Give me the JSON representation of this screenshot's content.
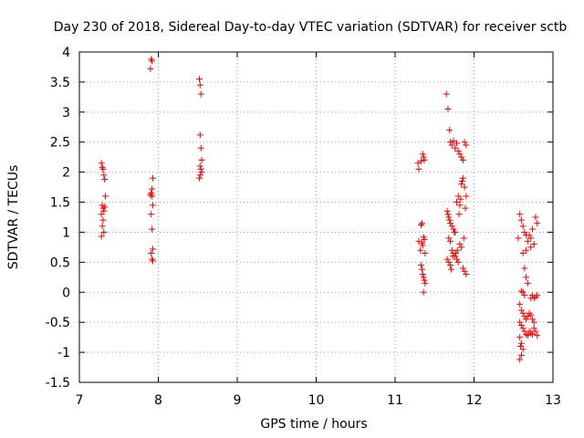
{
  "chart_data": {
    "type": "scatter",
    "title": "Day 230 of 2018, Sidereal Day-to-day VTEC variation (SDTVAR) for receiver sctb",
    "xlabel": "GPS time / hours",
    "ylabel": "SDTVAR / TECUs",
    "xlim": [
      7,
      13
    ],
    "ylim": [
      -1.5,
      4
    ],
    "xticks": [
      "7",
      "8",
      "9",
      "10",
      "11",
      "12",
      "13"
    ],
    "yticks": [
      "-1.5",
      "-1",
      "-0.5",
      "0",
      "0.5",
      "1",
      "1.5",
      "2",
      "2.5",
      "3",
      "3.5",
      "4"
    ],
    "grid": true,
    "marker": "plus",
    "color": "#ff0000",
    "series": [
      {
        "name": "SDTVAR",
        "points": [
          [
            7.28,
            2.15
          ],
          [
            7.29,
            2.08
          ],
          [
            7.3,
            2.05
          ],
          [
            7.31,
            1.95
          ],
          [
            7.32,
            1.88
          ],
          [
            7.33,
            1.6
          ],
          [
            7.29,
            1.45
          ],
          [
            7.3,
            1.4
          ],
          [
            7.31,
            1.35
          ],
          [
            7.28,
            1.3
          ],
          [
            7.3,
            1.2
          ],
          [
            7.29,
            1.1
          ],
          [
            7.31,
            1.0
          ],
          [
            7.28,
            0.93
          ],
          [
            7.32,
            1.42
          ],
          [
            7.91,
            3.88
          ],
          [
            7.92,
            3.85
          ],
          [
            7.9,
            3.72
          ],
          [
            7.93,
            1.9
          ],
          [
            7.92,
            1.72
          ],
          [
            7.91,
            1.65
          ],
          [
            7.9,
            1.62
          ],
          [
            7.92,
            1.6
          ],
          [
            7.93,
            1.45
          ],
          [
            7.91,
            1.3
          ],
          [
            7.92,
            1.05
          ],
          [
            7.93,
            0.72
          ],
          [
            7.91,
            0.65
          ],
          [
            7.92,
            0.55
          ],
          [
            7.93,
            0.52
          ],
          [
            8.52,
            3.55
          ],
          [
            8.53,
            3.45
          ],
          [
            8.54,
            3.3
          ],
          [
            8.53,
            2.62
          ],
          [
            8.54,
            2.4
          ],
          [
            8.55,
            2.2
          ],
          [
            8.53,
            2.1
          ],
          [
            8.54,
            2.05
          ],
          [
            8.55,
            2.0
          ],
          [
            8.53,
            1.95
          ],
          [
            8.52,
            1.9
          ],
          [
            11.29,
            2.15
          ],
          [
            11.3,
            2.05
          ],
          [
            11.33,
            2.18
          ],
          [
            11.35,
            2.3
          ],
          [
            11.36,
            2.25
          ],
          [
            11.37,
            2.2
          ],
          [
            11.34,
            1.15
          ],
          [
            11.33,
            1.12
          ],
          [
            11.36,
            0.92
          ],
          [
            11.37,
            0.88
          ],
          [
            11.34,
            0.82
          ],
          [
            11.35,
            0.78
          ],
          [
            11.38,
            0.65
          ],
          [
            11.33,
            0.45
          ],
          [
            11.34,
            0.38
          ],
          [
            11.35,
            0.3
          ],
          [
            11.36,
            0.25
          ],
          [
            11.37,
            0.2
          ],
          [
            11.38,
            0.15
          ],
          [
            11.36,
            0.0
          ],
          [
            11.3,
            0.85
          ],
          [
            11.32,
            0.7
          ],
          [
            11.65,
            3.3
          ],
          [
            11.67,
            3.05
          ],
          [
            11.69,
            2.7
          ],
          [
            11.7,
            2.5
          ],
          [
            11.72,
            2.45
          ],
          [
            11.74,
            2.52
          ],
          [
            11.76,
            2.4
          ],
          [
            11.78,
            2.48
          ],
          [
            11.8,
            2.35
          ],
          [
            11.82,
            2.3
          ],
          [
            11.84,
            2.25
          ],
          [
            11.86,
            2.2
          ],
          [
            11.88,
            2.5
          ],
          [
            11.9,
            2.45
          ],
          [
            11.66,
            1.35
          ],
          [
            11.67,
            1.3
          ],
          [
            11.68,
            1.25
          ],
          [
            11.69,
            1.2
          ],
          [
            11.7,
            1.15
          ],
          [
            11.72,
            1.1
          ],
          [
            11.74,
            1.05
          ],
          [
            11.76,
            1.0
          ],
          [
            11.78,
            1.5
          ],
          [
            11.8,
            1.6
          ],
          [
            11.82,
            1.45
          ],
          [
            11.84,
            1.8
          ],
          [
            11.86,
            1.9
          ],
          [
            11.88,
            1.75
          ],
          [
            11.9,
            1.6
          ],
          [
            11.68,
            0.9
          ],
          [
            11.7,
            0.85
          ],
          [
            11.72,
            0.7
          ],
          [
            11.74,
            0.65
          ],
          [
            11.76,
            0.6
          ],
          [
            11.78,
            0.55
          ],
          [
            11.8,
            0.5
          ],
          [
            11.82,
            0.8
          ],
          [
            11.84,
            0.75
          ],
          [
            11.86,
            0.4
          ],
          [
            11.88,
            0.35
          ],
          [
            11.9,
            0.3
          ],
          [
            11.66,
            0.55
          ],
          [
            11.68,
            0.5
          ],
          [
            11.7,
            0.45
          ],
          [
            11.71,
            0.38
          ],
          [
            11.73,
            0.6
          ],
          [
            11.75,
            1.0
          ],
          [
            11.77,
            0.65
          ],
          [
            11.79,
            0.7
          ],
          [
            11.81,
            1.3
          ],
          [
            11.83,
            1.55
          ],
          [
            11.85,
            1.85
          ],
          [
            11.87,
            0.9
          ],
          [
            11.89,
            1.4
          ],
          [
            12.58,
            1.3
          ],
          [
            12.6,
            1.2
          ],
          [
            12.62,
            1.1
          ],
          [
            12.64,
            1.0
          ],
          [
            12.66,
            0.95
          ],
          [
            12.68,
            0.85
          ],
          [
            12.7,
            0.95
          ],
          [
            12.72,
            0.9
          ],
          [
            12.74,
            1.05
          ],
          [
            12.76,
            0.8
          ],
          [
            12.78,
            1.25
          ],
          [
            12.8,
            1.15
          ],
          [
            12.62,
            0.65
          ],
          [
            12.64,
            0.4
          ],
          [
            12.66,
            0.25
          ],
          [
            12.68,
            0.15
          ],
          [
            12.6,
            0.02
          ],
          [
            12.62,
            0.0
          ],
          [
            12.64,
            -0.05
          ],
          [
            12.72,
            -0.1
          ],
          [
            12.74,
            -0.05
          ],
          [
            12.76,
            -0.1
          ],
          [
            12.78,
            -0.08
          ],
          [
            12.8,
            -0.05
          ],
          [
            12.58,
            -0.2
          ],
          [
            12.6,
            -0.3
          ],
          [
            12.62,
            -0.35
          ],
          [
            12.64,
            -0.4
          ],
          [
            12.66,
            -0.45
          ],
          [
            12.68,
            -0.4
          ],
          [
            12.7,
            -0.35
          ],
          [
            12.72,
            -0.38
          ],
          [
            12.74,
            -0.45
          ],
          [
            12.76,
            -0.5
          ],
          [
            12.58,
            -0.5
          ],
          [
            12.6,
            -0.55
          ],
          [
            12.62,
            -0.6
          ],
          [
            12.64,
            -0.65
          ],
          [
            12.66,
            -0.7
          ],
          [
            12.68,
            -0.72
          ],
          [
            12.7,
            -0.65
          ],
          [
            12.72,
            -0.68
          ],
          [
            12.74,
            -0.7
          ],
          [
            12.76,
            -0.6
          ],
          [
            12.78,
            -0.65
          ],
          [
            12.8,
            -0.72
          ],
          [
            12.58,
            -0.75
          ],
          [
            12.6,
            -0.85
          ],
          [
            12.59,
            -0.9
          ],
          [
            12.6,
            -1.05
          ],
          [
            12.58,
            -1.12
          ],
          [
            12.62,
            -0.95
          ],
          [
            12.66,
            0.7
          ],
          [
            12.72,
            0.75
          ],
          [
            12.56,
            0.9
          ]
        ]
      }
    ]
  }
}
